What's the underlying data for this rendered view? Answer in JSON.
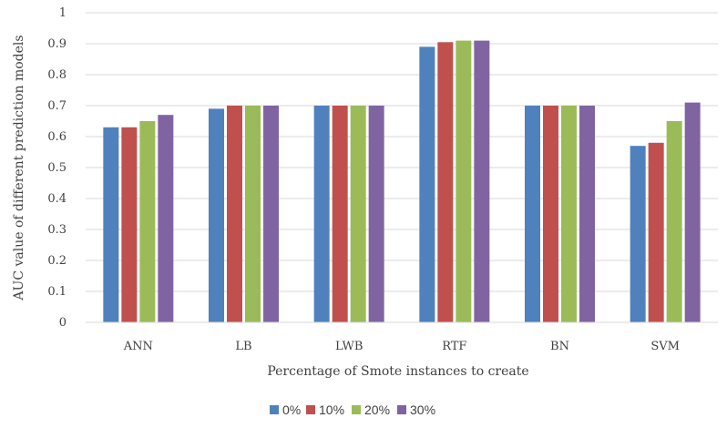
{
  "chart_data": {
    "type": "bar",
    "categories": [
      "ANN",
      "LB",
      "LWB",
      "RTF",
      "BN",
      "SVM"
    ],
    "series": [
      {
        "name": "0%",
        "color": "#4F81BD",
        "values": [
          0.63,
          0.69,
          0.7,
          0.89,
          0.7,
          0.57
        ]
      },
      {
        "name": "10%",
        "color": "#C0504D",
        "values": [
          0.63,
          0.7,
          0.7,
          0.905,
          0.7,
          0.58
        ]
      },
      {
        "name": "20%",
        "color": "#9BBB59",
        "values": [
          0.65,
          0.7,
          0.7,
          0.91,
          0.7,
          0.65
        ]
      },
      {
        "name": "30%",
        "color": "#8064A2",
        "values": [
          0.67,
          0.7,
          0.7,
          0.91,
          0.7,
          0.71
        ]
      }
    ],
    "xlabel": "Percentage  of Smote instances to create",
    "ylabel": "AUC value of different prediction models",
    "ylim": [
      0,
      1
    ],
    "yticks": [
      "0",
      "0.1",
      "0.2",
      "0.3",
      "0.4",
      "0.5",
      "0.6",
      "0.7",
      "0.8",
      "0.9",
      "1"
    ],
    "grid": true,
    "legend": "bottom"
  }
}
